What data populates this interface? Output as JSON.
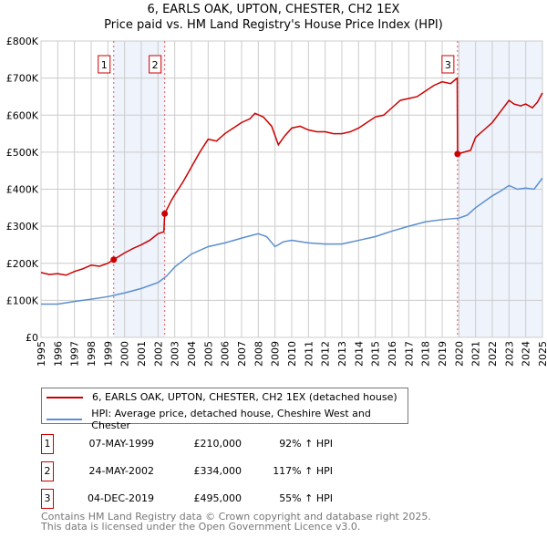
{
  "chart_data": {
    "type": "line",
    "title": "6, EARLS OAK, UPTON, CHESTER, CH2 1EX",
    "subtitle": "Price paid vs. HM Land Registry's House Price Index (HPI)",
    "xlim": [
      1995,
      2025
    ],
    "ylim": [
      0,
      800000
    ],
    "y_ticks": [
      "£0",
      "£100K",
      "£200K",
      "£300K",
      "£400K",
      "£500K",
      "£600K",
      "£700K",
      "£800K"
    ],
    "x_ticks": [
      "1995",
      "1996",
      "1997",
      "1998",
      "1999",
      "2000",
      "2001",
      "2002",
      "2003",
      "2004",
      "2005",
      "2006",
      "2007",
      "2008",
      "2009",
      "2010",
      "2011",
      "2012",
      "2013",
      "2014",
      "2015",
      "2016",
      "2017",
      "2018",
      "2019",
      "2020",
      "2021",
      "2022",
      "2023",
      "2024",
      "2025"
    ],
    "grid": true,
    "colors": {
      "property": "#cc0000",
      "hpi": "#5b8fd0",
      "shade": "#eef3fc"
    },
    "series": [
      {
        "name": "6, EARLS OAK, UPTON, CHESTER, CH2 1EX (detached house)",
        "x": [
          1995,
          1995.5,
          1996,
          1996.5,
          1997,
          1997.5,
          1998,
          1998.5,
          1999,
          1999.35,
          2000,
          2000.5,
          2001,
          2001.5,
          2002,
          2002.35,
          2002.4,
          2002.8,
          2003,
          2003.5,
          2004,
          2004.5,
          2005,
          2005.5,
          2006,
          2006.5,
          2007,
          2007.5,
          2007.8,
          2008.3,
          2008.8,
          2009.2,
          2009.6,
          2010,
          2010.5,
          2011,
          2011.5,
          2012,
          2012.5,
          2013,
          2013.5,
          2014,
          2014.5,
          2015,
          2015.5,
          2016,
          2016.5,
          2017,
          2017.5,
          2018,
          2018.5,
          2019,
          2019.5,
          2019.9,
          2019.92,
          2020.3,
          2020.7,
          2021,
          2021.5,
          2022,
          2022.5,
          2023,
          2023.3,
          2023.7,
          2024,
          2024.4,
          2024.7,
          2025
        ],
        "y": [
          175000,
          170000,
          172000,
          168000,
          178000,
          185000,
          195000,
          192000,
          200000,
          210000,
          228000,
          240000,
          250000,
          262000,
          280000,
          285000,
          334000,
          370000,
          385000,
          420000,
          460000,
          500000,
          535000,
          530000,
          550000,
          565000,
          580000,
          590000,
          605000,
          595000,
          570000,
          520000,
          545000,
          565000,
          570000,
          560000,
          555000,
          555000,
          550000,
          550000,
          555000,
          565000,
          580000,
          595000,
          600000,
          620000,
          640000,
          645000,
          650000,
          665000,
          680000,
          690000,
          685000,
          700000,
          495000,
          500000,
          505000,
          540000,
          560000,
          580000,
          610000,
          640000,
          630000,
          625000,
          630000,
          620000,
          635000,
          660000
        ]
      },
      {
        "name": "HPI: Average price, detached house, Cheshire West and Chester",
        "x": [
          1995,
          1996,
          1997,
          1998,
          1999,
          2000,
          2001,
          2002,
          2002.5,
          2003,
          2004,
          2005,
          2006,
          2007,
          2008,
          2008.5,
          2009,
          2009.5,
          2010,
          2011,
          2012,
          2013,
          2014,
          2015,
          2016,
          2017,
          2018,
          2019,
          2020,
          2020.5,
          2021,
          2022,
          2022.5,
          2023,
          2023.5,
          2024,
          2024.5,
          2025
        ],
        "y": [
          90000,
          90000,
          97000,
          103000,
          110000,
          120000,
          132000,
          148000,
          165000,
          190000,
          225000,
          245000,
          255000,
          268000,
          280000,
          272000,
          245000,
          258000,
          262000,
          255000,
          252000,
          252000,
          262000,
          272000,
          287000,
          300000,
          312000,
          318000,
          322000,
          330000,
          350000,
          382000,
          395000,
          410000,
          400000,
          403000,
          400000,
          430000
        ]
      }
    ],
    "markers": [
      {
        "label": "1",
        "x": 1999.35,
        "y": 210000
      },
      {
        "label": "2",
        "x": 2002.4,
        "y": 334000
      },
      {
        "label": "3",
        "x": 2019.92,
        "y": 495000
      }
    ],
    "shaded_ranges": [
      [
        1999.35,
        2002.4
      ],
      [
        2019.92,
        2025
      ]
    ]
  },
  "legend": {
    "property": "6, EARLS OAK, UPTON, CHESTER, CH2 1EX (detached house)",
    "hpi": "HPI: Average price, detached house, Cheshire West and Chester"
  },
  "transactions": [
    {
      "num": "1",
      "date": "07-MAY-1999",
      "price": "£210,000",
      "hpi": "92% ↑ HPI"
    },
    {
      "num": "2",
      "date": "24-MAY-2002",
      "price": "£334,000",
      "hpi": "117% ↑ HPI"
    },
    {
      "num": "3",
      "date": "04-DEC-2019",
      "price": "£495,000",
      "hpi": "55% ↑ HPI"
    }
  ],
  "footer": {
    "line1": "Contains HM Land Registry data © Crown copyright and database right 2025.",
    "line2": "This data is licensed under the Open Government Licence v3.0."
  }
}
